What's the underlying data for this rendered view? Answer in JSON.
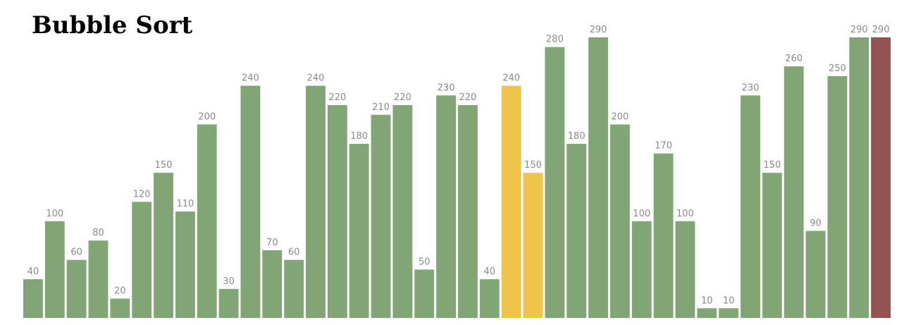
{
  "chart_data": {
    "type": "bar",
    "title": "Bubble Sort",
    "values": [
      40,
      100,
      60,
      80,
      20,
      120,
      150,
      110,
      200,
      30,
      240,
      70,
      60,
      240,
      220,
      180,
      210,
      220,
      50,
      230,
      220,
      40,
      240,
      150,
      280,
      180,
      290,
      200,
      100,
      170,
      100,
      10,
      10,
      230,
      150,
      260,
      90,
      250,
      290,
      290
    ],
    "colors": [
      "#82a576",
      "#82a576",
      "#82a576",
      "#82a576",
      "#82a576",
      "#82a576",
      "#82a576",
      "#82a576",
      "#82a576",
      "#82a576",
      "#82a576",
      "#82a576",
      "#82a576",
      "#82a576",
      "#82a576",
      "#82a576",
      "#82a576",
      "#82a576",
      "#82a576",
      "#82a576",
      "#82a576",
      "#82a576",
      "#f0c44c",
      "#f0c44c",
      "#82a576",
      "#82a576",
      "#82a576",
      "#82a576",
      "#82a576",
      "#82a576",
      "#82a576",
      "#82a576",
      "#82a576",
      "#82a576",
      "#82a576",
      "#82a576",
      "#82a576",
      "#82a576",
      "#82a576",
      "#955252"
    ],
    "ylim": [
      0,
      290
    ]
  }
}
